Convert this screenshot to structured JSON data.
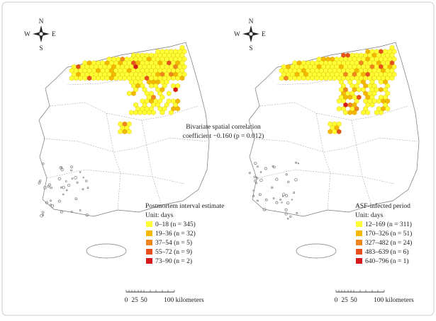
{
  "compass": {
    "n": "N",
    "s": "S",
    "w": "W",
    "e": "E"
  },
  "annotation": [
    "Bivariate spatial correlation",
    "coefficient −0.160 (p = 0.012)"
  ],
  "maps": [
    {
      "legend_title": "Postmortem interval estimate",
      "unit": "Unit: days",
      "items": [
        {
          "label": "0–18 (n = 345)",
          "color": "#ffff33"
        },
        {
          "label": "19–36 (n = 32)",
          "color": "#f5b800"
        },
        {
          "label": "37–54 (n = 5)",
          "color": "#f0861e"
        },
        {
          "label": "55–72 (n = 9)",
          "color": "#e6501e"
        },
        {
          "label": "73–90 (n = 2)",
          "color": "#d7191c"
        }
      ],
      "scale": [
        "0",
        "25",
        "50",
        "100 kilometers"
      ]
    },
    {
      "legend_title": "ASF-infected period",
      "unit": "Unit: days",
      "items": [
        {
          "label": "12–169 (n = 311)",
          "color": "#ffff33"
        },
        {
          "label": "170–326 (n = 51)",
          "color": "#f5b800"
        },
        {
          "label": "327–482 (n = 24)",
          "color": "#f0861e"
        },
        {
          "label": "483–639 (n = 6)",
          "color": "#e6501e"
        },
        {
          "label": "640–796 (n = 1)",
          "color": "#d7191c"
        }
      ],
      "scale": [
        "0",
        "25",
        "50",
        "100 kilometers"
      ]
    }
  ]
}
